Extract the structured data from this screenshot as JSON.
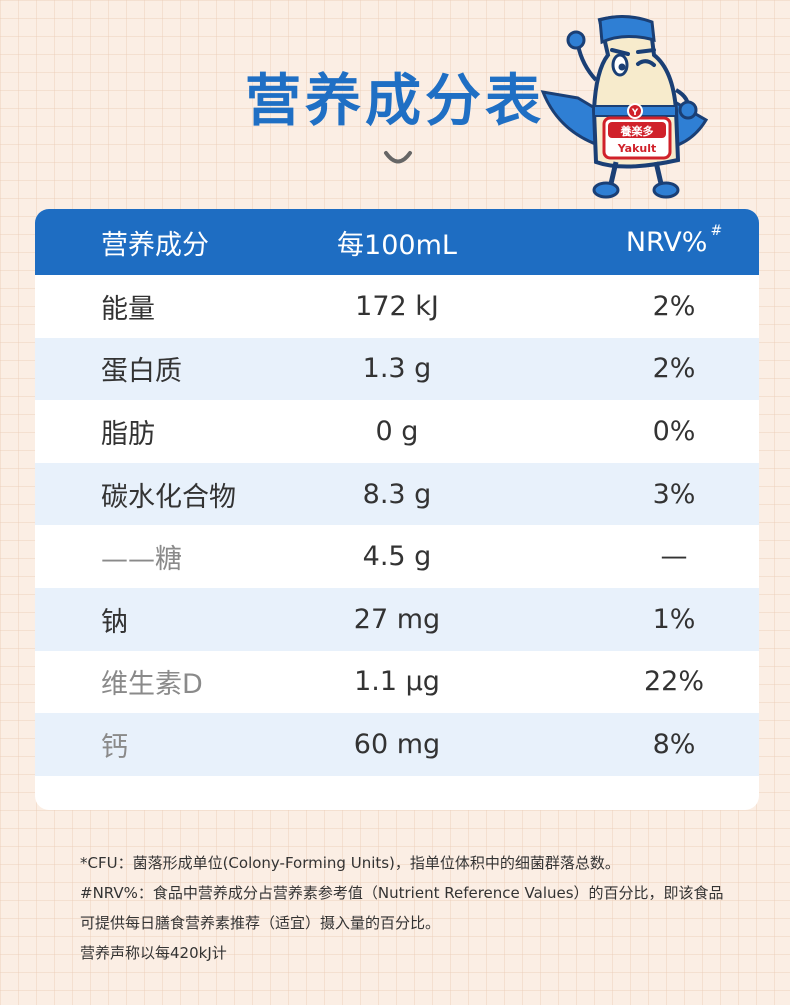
{
  "title": "营养成分表",
  "badge": {
    "brand_cn": "養楽多",
    "brand_en": "Yakult",
    "letter": "Y"
  },
  "table": {
    "headers": {
      "name": "营养成分",
      "per": "每100mL",
      "nrv": "NRV%",
      "nrv_mark": "#"
    },
    "rows": [
      {
        "name": "能量",
        "value": "172 kJ",
        "nrv": "2%"
      },
      {
        "name": "蛋白质",
        "value": "1.3 g",
        "nrv": "2%"
      },
      {
        "name": "脂肪",
        "value": "0 g",
        "nrv": "0%"
      },
      {
        "name": "碳水化合物",
        "value": "8.3 g",
        "nrv": "3%"
      },
      {
        "name": "——糖",
        "value": "4.5 g",
        "nrv": "—"
      },
      {
        "name": "钠",
        "value": "27 mg",
        "nrv": "1%"
      },
      {
        "name": "维生素D",
        "value": "1.1 μg",
        "nrv": "22%"
      },
      {
        "name": "钙",
        "value": "60 mg",
        "nrv": "8%"
      }
    ]
  },
  "notes": [
    "*CFU：菌落形成单位(Colony-Forming Units)，指单位体积中的细菌群落总数。",
    "#NRV%：食品中营养成分占营养素参考值（Nutrient Reference Values）的百分比，即该食品",
    "可提供每日膳食营养素推荐（适宜）摄入量的百分比。",
    "营养声称以每420kJ计"
  ],
  "colors": {
    "accent": "#1e6dc2",
    "row_alt": "#e8f1fb",
    "background": "#fbeee4"
  }
}
